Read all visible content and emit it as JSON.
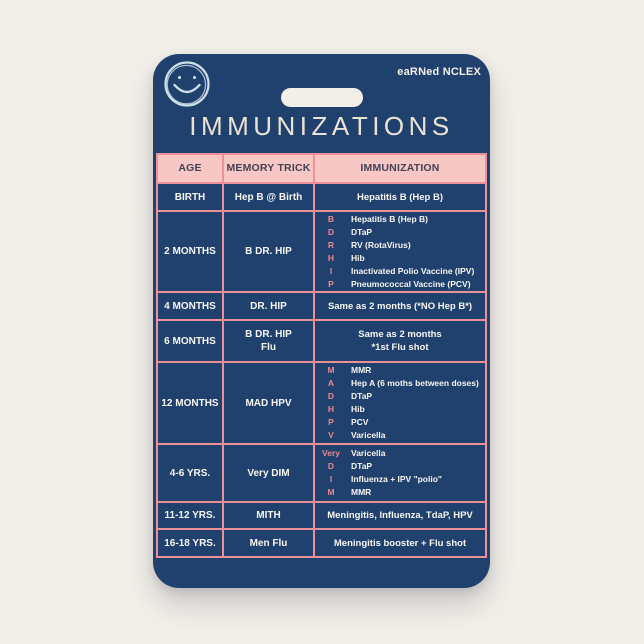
{
  "card": {
    "brand": "eaRNed NCLEX",
    "title": "IMMUNIZATIONS",
    "colors": {
      "background_cream": "#f2efe9",
      "card_navy": "#20416e",
      "pink_header_fill": "#f7c7c6",
      "pink_grid_line": "#ee9097",
      "abbr_letter_pink": "#e9888f",
      "text_white": "#f7f6f0",
      "title_cream": "#eae2d2"
    },
    "icons": [
      "smiley-face-icon"
    ]
  },
  "table": {
    "headers": [
      "AGE",
      "MEMORY TRICK",
      "IMMUNIZATION"
    ],
    "rows": [
      {
        "age": "BIRTH",
        "trick": [
          "Hep B @ Birth"
        ],
        "immunization": {
          "type": "text",
          "lines": [
            "Hepatitis B (Hep B)"
          ]
        }
      },
      {
        "age": "2 MONTHS",
        "trick": [
          "B DR. HIP"
        ],
        "immunization": {
          "type": "list",
          "items": [
            [
              "B",
              "Hepatitis B (Hep B)"
            ],
            [
              "D",
              "DTaP"
            ],
            [
              "R",
              "RV (RotaVirus)"
            ],
            [
              "H",
              "Hib"
            ],
            [
              "I",
              "Inactivated Polio Vaccine (IPV)"
            ],
            [
              "P",
              "Pneumococcal Vaccine (PCV)"
            ]
          ]
        }
      },
      {
        "age": "4 MONTHS",
        "trick": [
          "DR. HIP"
        ],
        "immunization": {
          "type": "text",
          "lines": [
            "Same as 2 months (*NO Hep B*)"
          ]
        }
      },
      {
        "age": "6 MONTHS",
        "trick": [
          "B DR. HIP",
          "Flu"
        ],
        "immunization": {
          "type": "text",
          "lines": [
            "Same as 2 months",
            "*1st Flu shot"
          ]
        }
      },
      {
        "age": "12 MONTHS",
        "trick": [
          "MAD HPV"
        ],
        "immunization": {
          "type": "list",
          "items": [
            [
              "M",
              "MMR"
            ],
            [
              "A",
              "Hep A (6 moths between doses)"
            ],
            [
              "D",
              "DTaP"
            ],
            [
              "H",
              "Hib"
            ],
            [
              "P",
              "PCV"
            ],
            [
              "V",
              "Varicella"
            ]
          ]
        }
      },
      {
        "age": "4-6 YRS.",
        "trick": [
          "Very DIM"
        ],
        "immunization": {
          "type": "list",
          "items": [
            [
              "Very",
              "Varicella"
            ],
            [
              "D",
              "DTaP"
            ],
            [
              "I",
              "Influenza + IPV  \"polio\""
            ],
            [
              "M",
              "MMR"
            ]
          ]
        }
      },
      {
        "age": "11-12 YRS.",
        "trick": [
          "MITH"
        ],
        "immunization": {
          "type": "text",
          "lines": [
            "Meningitis, Influenza, TdaP, HPV"
          ]
        }
      },
      {
        "age": "16-18 YRS.",
        "trick": [
          "Men Flu"
        ],
        "immunization": {
          "type": "text",
          "lines": [
            "Meningitis booster +  Flu shot"
          ]
        }
      }
    ]
  }
}
